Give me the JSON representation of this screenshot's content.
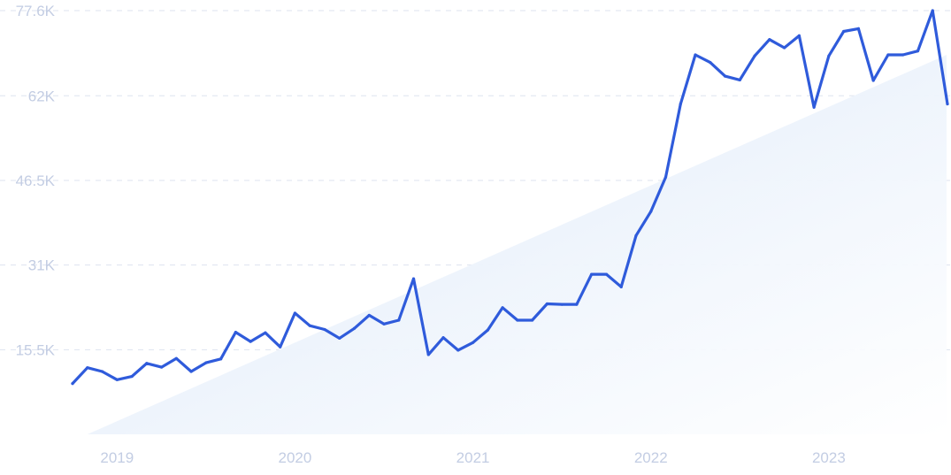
{
  "chart_data": {
    "type": "line",
    "title": "",
    "xlabel": "",
    "ylabel": "",
    "grid": true,
    "legend": "none",
    "ylim": [
      0,
      77600
    ],
    "y_ticks": [
      15500,
      31000,
      46500,
      62000,
      77600
    ],
    "y_tick_labels": [
      "15.5K",
      "31K",
      "46.5K",
      "62K",
      "77.6K"
    ],
    "x_ticks": [
      "2019",
      "2020",
      "2021",
      "2022",
      "2023"
    ],
    "x_start": "2018-10",
    "series": [
      {
        "values": [
          9300,
          12200,
          11500,
          10000,
          10600,
          13000,
          12300,
          13900,
          11500,
          13100,
          13800,
          18700,
          17000,
          18600,
          16000,
          22200,
          19900,
          19200,
          17600,
          19400,
          21800,
          20200,
          20900,
          28500,
          14600,
          17700,
          15400,
          16800,
          19100,
          23200,
          20900,
          20900,
          23900,
          23800,
          23800,
          29300,
          29300,
          27000,
          36400,
          40800,
          47100,
          60500,
          69500,
          68100,
          65600,
          64900,
          69300,
          72300,
          70800,
          73000,
          59900,
          69300,
          73800,
          74300,
          64800,
          69500,
          69500,
          70200,
          77600,
          60500
        ]
      }
    ],
    "trend": {
      "start": 0,
      "end": 69500
    },
    "colors": {
      "line": "#2f5bdb",
      "grid": "#dde3ef",
      "tick_text": "#c3cde3",
      "fill_top": "#dde9f8",
      "fill_bottom": "#ffffff"
    }
  }
}
